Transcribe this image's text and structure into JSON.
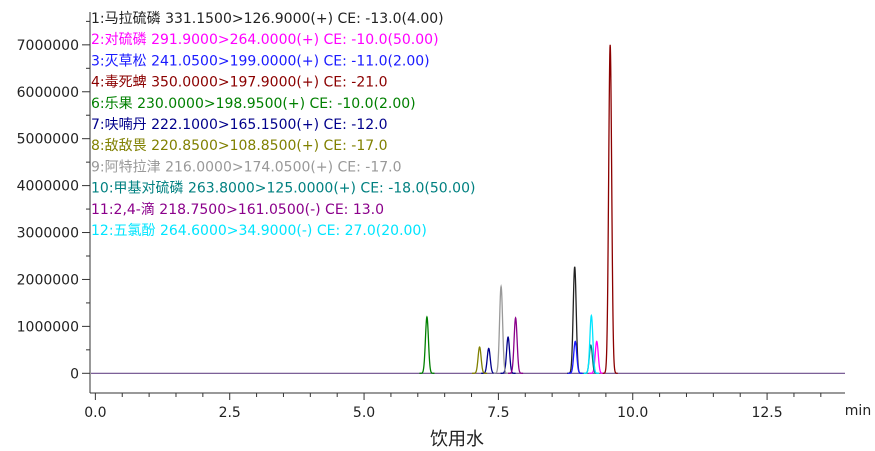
{
  "chart_data": {
    "type": "line",
    "xlabel": "饮用水",
    "x_unit": "min",
    "ylabel": "",
    "xlim": [
      -0.1,
      13.95
    ],
    "ylim": [
      -420000,
      7700000
    ],
    "x_ticks": [
      0.0,
      2.5,
      5.0,
      7.5,
      10.0,
      12.5
    ],
    "x_tick_labels": [
      "0.0",
      "2.5",
      "5.0",
      "7.5",
      "10.0",
      "12.5"
    ],
    "y_ticks": [
      0,
      1000000,
      2000000,
      3000000,
      4000000,
      5000000,
      6000000,
      7000000
    ],
    "y_tick_labels": [
      "0",
      "1000000",
      "2000000",
      "3000000",
      "4000000",
      "5000000",
      "6000000",
      "7000000"
    ],
    "grid": false,
    "legend_placement": "top-left",
    "series": [
      {
        "name": "1:马拉硫磷 331.1500>126.9000(+) CE: -13.0(4.00)",
        "color": "#222222",
        "peaks": [
          {
            "rt": 8.92,
            "height": 2270000
          }
        ]
      },
      {
        "name": "2:对硫磷 291.9000>264.0000(+) CE: -10.0(50.00)",
        "color": "#ff00ff",
        "peaks": [
          {
            "rt": 9.33,
            "height": 680000
          }
        ]
      },
      {
        "name": "3:灭草松 241.0500>199.0000(+) CE: -11.0(2.00)",
        "color": "#1a1aff",
        "peaks": [
          {
            "rt": 8.93,
            "height": 680000
          }
        ]
      },
      {
        "name": "4:毒死蜱 350.0000>197.9000(+) CE: -21.0",
        "color": "#8b0000",
        "peaks": [
          {
            "rt": 9.58,
            "height": 7000000
          }
        ]
      },
      {
        "name": "6:乐果 230.0000>198.9500(+) CE: -10.0(2.00)",
        "color": "#008000",
        "peaks": [
          {
            "rt": 6.17,
            "height": 1200000
          }
        ]
      },
      {
        "name": "7:呋喃丹 222.1000>165.1500(+) CE: -12.0",
        "color": "#00008b",
        "peaks": [
          {
            "rt": 7.32,
            "height": 530000
          },
          {
            "rt": 7.68,
            "height": 770000
          }
        ]
      },
      {
        "name": "8:敌敌畏 220.8500>108.8500(+) CE: -17.0",
        "color": "#808000",
        "peaks": [
          {
            "rt": 7.15,
            "height": 560000
          }
        ]
      },
      {
        "name": "9:阿特拉津 216.0000>174.0500(+) CE: -17.0",
        "color": "#999999",
        "peaks": [
          {
            "rt": 7.55,
            "height": 1850000
          }
        ]
      },
      {
        "name": "10:甲基对硫磷 263.8000>125.0000(+) CE: -18.0(50.00)",
        "color": "#008080",
        "peaks": [
          {
            "rt": 9.22,
            "height": 600000
          }
        ]
      },
      {
        "name": "11:2,4-滴 218.7500>161.0500(-) CE: 13.0",
        "color": "#8b008b",
        "peaks": [
          {
            "rt": 7.82,
            "height": 1180000
          }
        ]
      },
      {
        "name": "12:五氯酚 264.6000>34.9000(-) CE: 27.0(20.00)",
        "color": "#00e5ff",
        "peaks": [
          {
            "rt": 9.23,
            "height": 1230000
          }
        ]
      }
    ]
  }
}
